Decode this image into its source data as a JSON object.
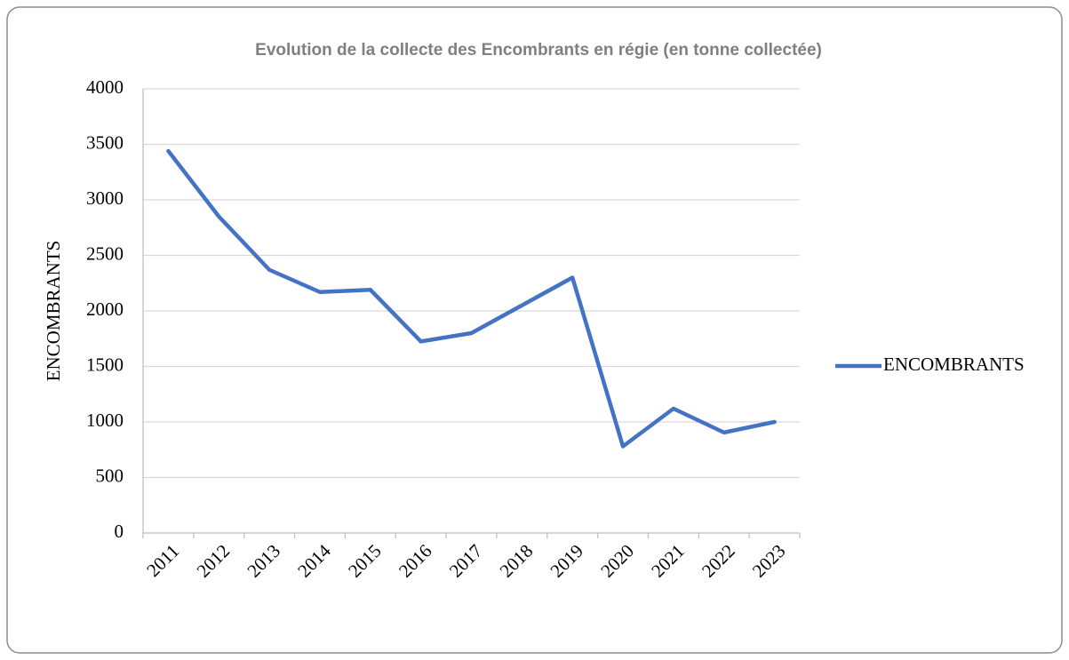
{
  "chart_data": {
    "type": "line",
    "title": "Evolution de la collecte des Encombrants en régie (en tonne collectée)",
    "y_label": "ENCOMBRANTS",
    "categories": [
      "2011",
      "2012",
      "2013",
      "2014",
      "2015",
      "2016",
      "2017",
      "2018",
      "2019",
      "2020",
      "2021",
      "2022",
      "2023"
    ],
    "series": [
      {
        "name": "ENCOMBRANTS",
        "color": "#4472c4",
        "values": [
          3440,
          2850,
          2370,
          2170,
          2190,
          1725,
          1800,
          2050,
          2300,
          780,
          1120,
          905,
          1000
        ]
      }
    ],
    "ylim": [
      0,
      4000
    ],
    "yticks": [
      0,
      500,
      1000,
      1500,
      2000,
      2500,
      3000,
      3500,
      4000
    ],
    "grid": true,
    "legend": "right"
  }
}
